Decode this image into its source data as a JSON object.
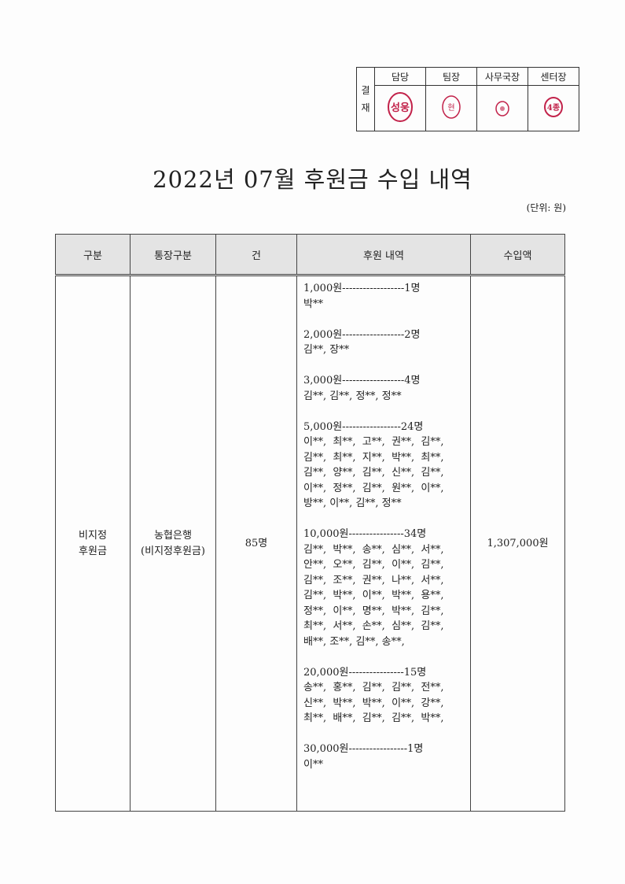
{
  "approval": {
    "label": "결\n재",
    "label_lines": [
      "결",
      "재"
    ],
    "headers": [
      "담당",
      "팀장",
      "사무국장",
      "센터장"
    ],
    "stamps": [
      {
        "text": "성용",
        "color": "#c2224a"
      },
      {
        "text": "현",
        "color": "#c2224a"
      },
      {
        "text": "",
        "color": "#c2224a"
      },
      {
        "text": "",
        "color": "#c2224a"
      }
    ]
  },
  "title": "2022년 07월 후원금 수입 내역",
  "unit": "(단위: 원)",
  "table": {
    "headers": [
      "구분",
      "통장구분",
      "건",
      "후원 내역",
      "수입액"
    ],
    "row": {
      "category": [
        "비지정",
        "후원금"
      ],
      "account": [
        "농협은행",
        "(비지정후원금)"
      ],
      "count": "85명",
      "amount": "1,307,000원",
      "groups": [
        {
          "header": "1,000원------------------1명",
          "names": [
            "박**"
          ]
        },
        {
          "header": "2,000원------------------2명",
          "names": [
            "김**, 장**"
          ]
        },
        {
          "header": "3,000원------------------4명",
          "names": [
            "김**, 김**, 정**, 정**"
          ]
        },
        {
          "header": "5,000원-----------------24명",
          "names": [
            "이**,  최**,  고**,  권**,  김**,",
            "김**,  최**,  지**,  박**,  최**,",
            "김**,  양**,  김**,  신**,  김**,",
            "이**,  정**,  김**,  원**,  이**,",
            "방**, 이**, 김**, 정**"
          ]
        },
        {
          "header": "10,000원----------------34명",
          "names": [
            "김**,  박**,  송**,  심**,  서**,",
            "안**,  오**,  김**,  이**,  김**,",
            "김**,  조**,  권**,  나**,  서**,",
            "김**,  박**,  이**,  박**,  용**,",
            "정**,  이**,  명**,  박**,  김**,",
            "최**,  서**,  손**,  심**,  김**,",
            "배**, 조**, 김**, 송**,"
          ]
        },
        {
          "header": "20,000원----------------15명",
          "names": [
            "송**,  홍**,  김**,  김**,  전**,",
            "신**,  박**,  박**,  이**,  강**,",
            "최**,  배**,  김**,  김**,  박**,"
          ]
        },
        {
          "header": "30,000원-----------------1명",
          "names": [
            "이**"
          ]
        }
      ]
    }
  }
}
